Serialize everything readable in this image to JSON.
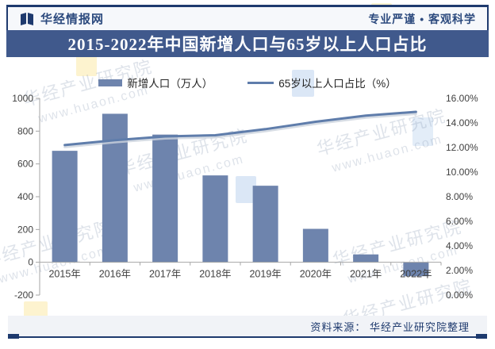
{
  "header": {
    "brand": "华经情报网",
    "slogan": "专业严谨 • 客观科学"
  },
  "title_bar": {
    "title": "2015-2022年中国新增人口与65岁以上人口占比"
  },
  "chart_data": {
    "type": "combo",
    "title": "2015-2022年中国新增人口与65岁以上人口占比",
    "categories": [
      "2015年",
      "2016年",
      "2017年",
      "2018年",
      "2019年",
      "2020年",
      "2021年",
      "2022年"
    ],
    "series": [
      {
        "name": "新增人口（万人）",
        "type": "bar",
        "axis": "left",
        "color": "#6e84ad",
        "values": [
          680,
          906,
          779,
          530,
          467,
          204,
          48,
          -85
        ]
      },
      {
        "name": "65岁以上人口占比（%）",
        "type": "line",
        "axis": "right",
        "color": "#5f7dab",
        "values": [
          12.2,
          12.6,
          12.9,
          13.0,
          13.5,
          14.1,
          14.6,
          14.9
        ]
      }
    ],
    "left_axis": {
      "min": -200,
      "max": 1000,
      "step": 200,
      "ticks": [
        "1000",
        "800",
        "600",
        "400",
        "200",
        "0",
        "-200"
      ]
    },
    "right_axis": {
      "min": 0,
      "max": 16,
      "step": 2,
      "ticks": [
        "16.00%",
        "14.00%",
        "12.00%",
        "10.00%",
        "8.00%",
        "6.00%",
        "4.00%",
        "2.00%",
        "0.00%"
      ]
    },
    "grid": false,
    "legend_position": "top"
  },
  "footer": {
    "source": "资料来源： 华经产业研究院整理"
  },
  "watermark": {
    "name": "华经产业研究院",
    "site": "www.huaon.com"
  },
  "colors": {
    "banner": "#40598c",
    "frame": "#1e3a6e",
    "bar": "#6e84ad",
    "line": "#5f7dab",
    "axis": "#a6a6a6",
    "tick_text": "#404040"
  }
}
